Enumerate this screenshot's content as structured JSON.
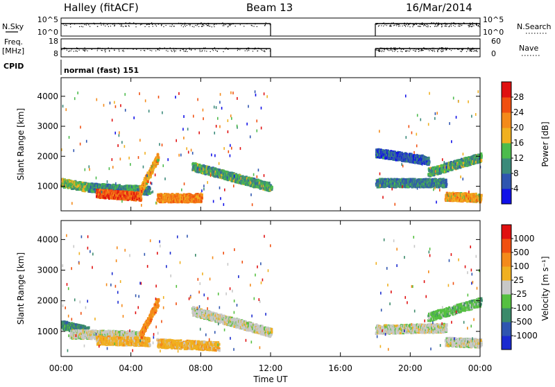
{
  "header": {
    "station": "Halley (fitACF)",
    "beam": "Beam 13",
    "date": "16/Mar/2014"
  },
  "strip_labels": {
    "nsky": "N.Sky",
    "nsky_ticks": [
      "10^5",
      "10^0"
    ],
    "nsearch": "N.Search",
    "nsearch_ticks": [
      "10^5",
      "10^0"
    ],
    "freq": "Freq.",
    "freq_unit": "[MHz]",
    "freq_ticks": [
      "18",
      "8"
    ],
    "nave": "Nave",
    "nave_ticks": [
      "60",
      "0"
    ],
    "cpid": "CPID",
    "cpid_value": "normal (fast) 151"
  },
  "chart_data": [
    {
      "type": "heatmap",
      "panel": "power",
      "ylabel": "Slant Range [km]",
      "xlabel": "",
      "x_ticks": [
        "00:00",
        "04:00",
        "08:00",
        "12:00",
        "16:00",
        "20:00",
        "00:00"
      ],
      "x_range_hours": [
        0,
        24
      ],
      "y_ticks": [
        1000,
        2000,
        3000,
        4000
      ],
      "y_range_km": [
        180,
        4620
      ],
      "data_gap_hours": [
        12,
        18
      ],
      "colorbar": {
        "label": "Power [dB]",
        "ticks": [
          "4",
          "8",
          "12",
          "16",
          "20",
          "24",
          "28"
        ],
        "levels": [
          0,
          4,
          8,
          12,
          16,
          20,
          24,
          28,
          32
        ],
        "colors": [
          "#1010e8",
          "#2f55b0",
          "#3b8a7a",
          "#4cbb4c",
          "#f0b020",
          "#f48a1a",
          "#f05010",
          "#e01010"
        ]
      },
      "echo_bands": [
        {
          "t0": 0.0,
          "t1": 1.5,
          "r0": 1150,
          "r1": 1000,
          "level": 14
        },
        {
          "t0": 1.5,
          "t1": 5.0,
          "r0": 1000,
          "r1": 900,
          "level": 10
        },
        {
          "t0": 2.0,
          "t1": 4.5,
          "r0": 800,
          "r1": 700,
          "level": 26
        },
        {
          "t0": 4.5,
          "t1": 5.5,
          "r0": 900,
          "r1": 2000,
          "level": 20
        },
        {
          "t0": 5.5,
          "t1": 8.0,
          "r0": 650,
          "r1": 650,
          "level": 22
        },
        {
          "t0": 7.5,
          "t1": 12.0,
          "r0": 1700,
          "r1": 1000,
          "level": 12
        },
        {
          "t0": 18.0,
          "t1": 22.0,
          "r0": 1150,
          "r1": 1150,
          "level": 9
        },
        {
          "t0": 18.0,
          "t1": 21.0,
          "r0": 2150,
          "r1": 1900,
          "level": 6
        },
        {
          "t0": 21.0,
          "t1": 24.0,
          "r0": 1500,
          "r1": 2000,
          "level": 12
        },
        {
          "t0": 22.0,
          "t1": 24.0,
          "r0": 700,
          "r1": 650,
          "level": 20
        }
      ]
    },
    {
      "type": "heatmap",
      "panel": "velocity",
      "ylabel": "Slant Range [km]",
      "xlabel": "Time UT",
      "x_ticks": [
        "00:00",
        "04:00",
        "08:00",
        "12:00",
        "16:00",
        "20:00",
        "00:00"
      ],
      "x_range_hours": [
        0,
        24
      ],
      "y_ticks": [
        1000,
        2000,
        3000,
        4000
      ],
      "y_range_km": [
        180,
        4620
      ],
      "data_gap_hours": [
        12,
        18
      ],
      "colorbar": {
        "label": "Velocity [m s⁻¹]",
        "ticks": [
          "1000",
          "500",
          "100",
          "25",
          "-25",
          "-100",
          "-500",
          "-1000"
        ],
        "colors": [
          "#1a2ad0",
          "#2f55b0",
          "#3b8a6a",
          "#55c040",
          "#c8c8c8",
          "#f0b020",
          "#f48a1a",
          "#f05010",
          "#e01010"
        ]
      },
      "echo_bands": [
        {
          "t0": 0.0,
          "t1": 1.5,
          "r0": 1250,
          "r1": 1050,
          "color_index": 2
        },
        {
          "t0": 0.5,
          "t1": 4.5,
          "r0": 950,
          "r1": 900,
          "color_index": 4
        },
        {
          "t0": 2.0,
          "t1": 5.0,
          "r0": 750,
          "r1": 700,
          "color_index": 5
        },
        {
          "t0": 4.5,
          "t1": 5.5,
          "r0": 900,
          "r1": 2000,
          "color_index": 6
        },
        {
          "t0": 5.5,
          "t1": 9.0,
          "r0": 650,
          "r1": 550,
          "color_index": 5
        },
        {
          "t0": 7.5,
          "t1": 12.0,
          "r0": 1700,
          "r1": 1000,
          "color_index": 4
        },
        {
          "t0": 18.0,
          "t1": 22.0,
          "r0": 1100,
          "r1": 1150,
          "color_index": 4
        },
        {
          "t0": 21.0,
          "t1": 24.0,
          "r0": 1500,
          "r1": 2000,
          "color_index": 3
        },
        {
          "t0": 22.0,
          "t1": 24.0,
          "r0": 700,
          "r1": 650,
          "color_index": 4
        }
      ]
    }
  ]
}
